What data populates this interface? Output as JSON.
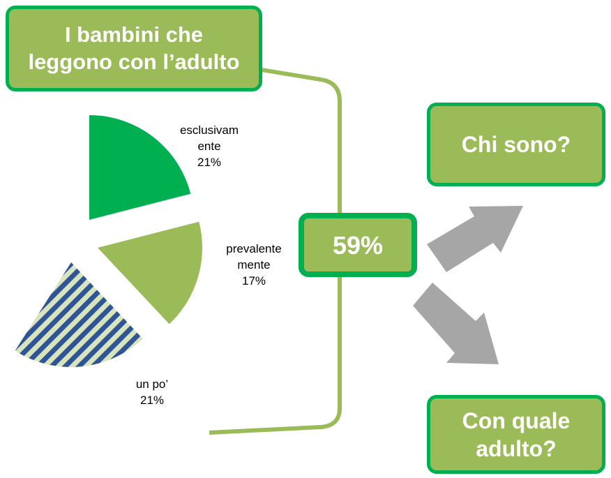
{
  "chart_data": {
    "type": "pie",
    "title": "I bambini che leggono con l’adulto",
    "categories": [
      "esclusivamente",
      "prevalentemente",
      "un po’"
    ],
    "values": [
      21,
      17,
      21
    ],
    "value_labels": [
      "21%",
      "17%",
      "21%"
    ],
    "colors": [
      "#00b050",
      "#9bbb59",
      "stripes"
    ]
  },
  "highlight": "59%",
  "questions": [
    "Chi sono?",
    "Con quale adulto?"
  ]
}
